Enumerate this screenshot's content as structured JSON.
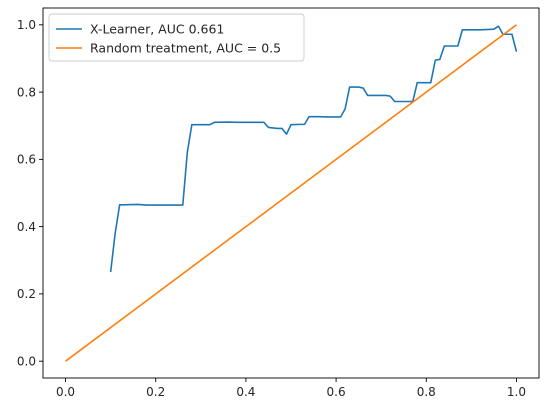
{
  "chart_data": {
    "type": "line",
    "xlim": [
      -0.05,
      1.05
    ],
    "ylim": [
      -0.05,
      1.05
    ],
    "xticks": [
      0.0,
      0.2,
      0.4,
      0.6,
      0.8,
      1.0
    ],
    "xtick_labels": [
      "0.0",
      "0.2",
      "0.4",
      "0.6",
      "0.8",
      "1.0"
    ],
    "yticks": [
      0.0,
      0.2,
      0.4,
      0.6,
      0.8,
      1.0
    ],
    "ytick_labels": [
      "0.0",
      "0.2",
      "0.4",
      "0.6",
      "0.8",
      "1.0"
    ],
    "grid": false,
    "legend_position": "upper-left",
    "series": [
      {
        "name": "X-Learner, AUC 0.661",
        "color": "#1f77b4",
        "points": [
          [
            0.1,
            0.265
          ],
          [
            0.11,
            0.38
          ],
          [
            0.12,
            0.465
          ],
          [
            0.13,
            0.465
          ],
          [
            0.16,
            0.466
          ],
          [
            0.18,
            0.464
          ],
          [
            0.2,
            0.464
          ],
          [
            0.22,
            0.464
          ],
          [
            0.24,
            0.464
          ],
          [
            0.26,
            0.464
          ],
          [
            0.27,
            0.62
          ],
          [
            0.28,
            0.703
          ],
          [
            0.3,
            0.703
          ],
          [
            0.32,
            0.703
          ],
          [
            0.33,
            0.71
          ],
          [
            0.36,
            0.711
          ],
          [
            0.38,
            0.71
          ],
          [
            0.4,
            0.71
          ],
          [
            0.42,
            0.71
          ],
          [
            0.44,
            0.71
          ],
          [
            0.45,
            0.695
          ],
          [
            0.47,
            0.692
          ],
          [
            0.48,
            0.692
          ],
          [
            0.49,
            0.675
          ],
          [
            0.5,
            0.703
          ],
          [
            0.52,
            0.704
          ],
          [
            0.53,
            0.704
          ],
          [
            0.54,
            0.727
          ],
          [
            0.56,
            0.727
          ],
          [
            0.58,
            0.726
          ],
          [
            0.6,
            0.726
          ],
          [
            0.61,
            0.726
          ],
          [
            0.62,
            0.75
          ],
          [
            0.63,
            0.815
          ],
          [
            0.65,
            0.815
          ],
          [
            0.66,
            0.812
          ],
          [
            0.67,
            0.79
          ],
          [
            0.69,
            0.79
          ],
          [
            0.71,
            0.79
          ],
          [
            0.72,
            0.788
          ],
          [
            0.73,
            0.772
          ],
          [
            0.75,
            0.772
          ],
          [
            0.77,
            0.772
          ],
          [
            0.78,
            0.828
          ],
          [
            0.8,
            0.828
          ],
          [
            0.81,
            0.828
          ],
          [
            0.82,
            0.895
          ],
          [
            0.83,
            0.897
          ],
          [
            0.84,
            0.937
          ],
          [
            0.86,
            0.937
          ],
          [
            0.87,
            0.937
          ],
          [
            0.88,
            0.985
          ],
          [
            0.9,
            0.985
          ],
          [
            0.92,
            0.985
          ],
          [
            0.95,
            0.987
          ],
          [
            0.96,
            0.996
          ],
          [
            0.97,
            0.972
          ],
          [
            0.98,
            0.972
          ],
          [
            0.99,
            0.972
          ],
          [
            1.0,
            0.92
          ]
        ]
      },
      {
        "name": "Random treatment, AUC = 0.5",
        "color": "#ff7f0e",
        "points": [
          [
            0.0,
            0.0
          ],
          [
            1.0,
            1.0
          ]
        ]
      }
    ]
  }
}
